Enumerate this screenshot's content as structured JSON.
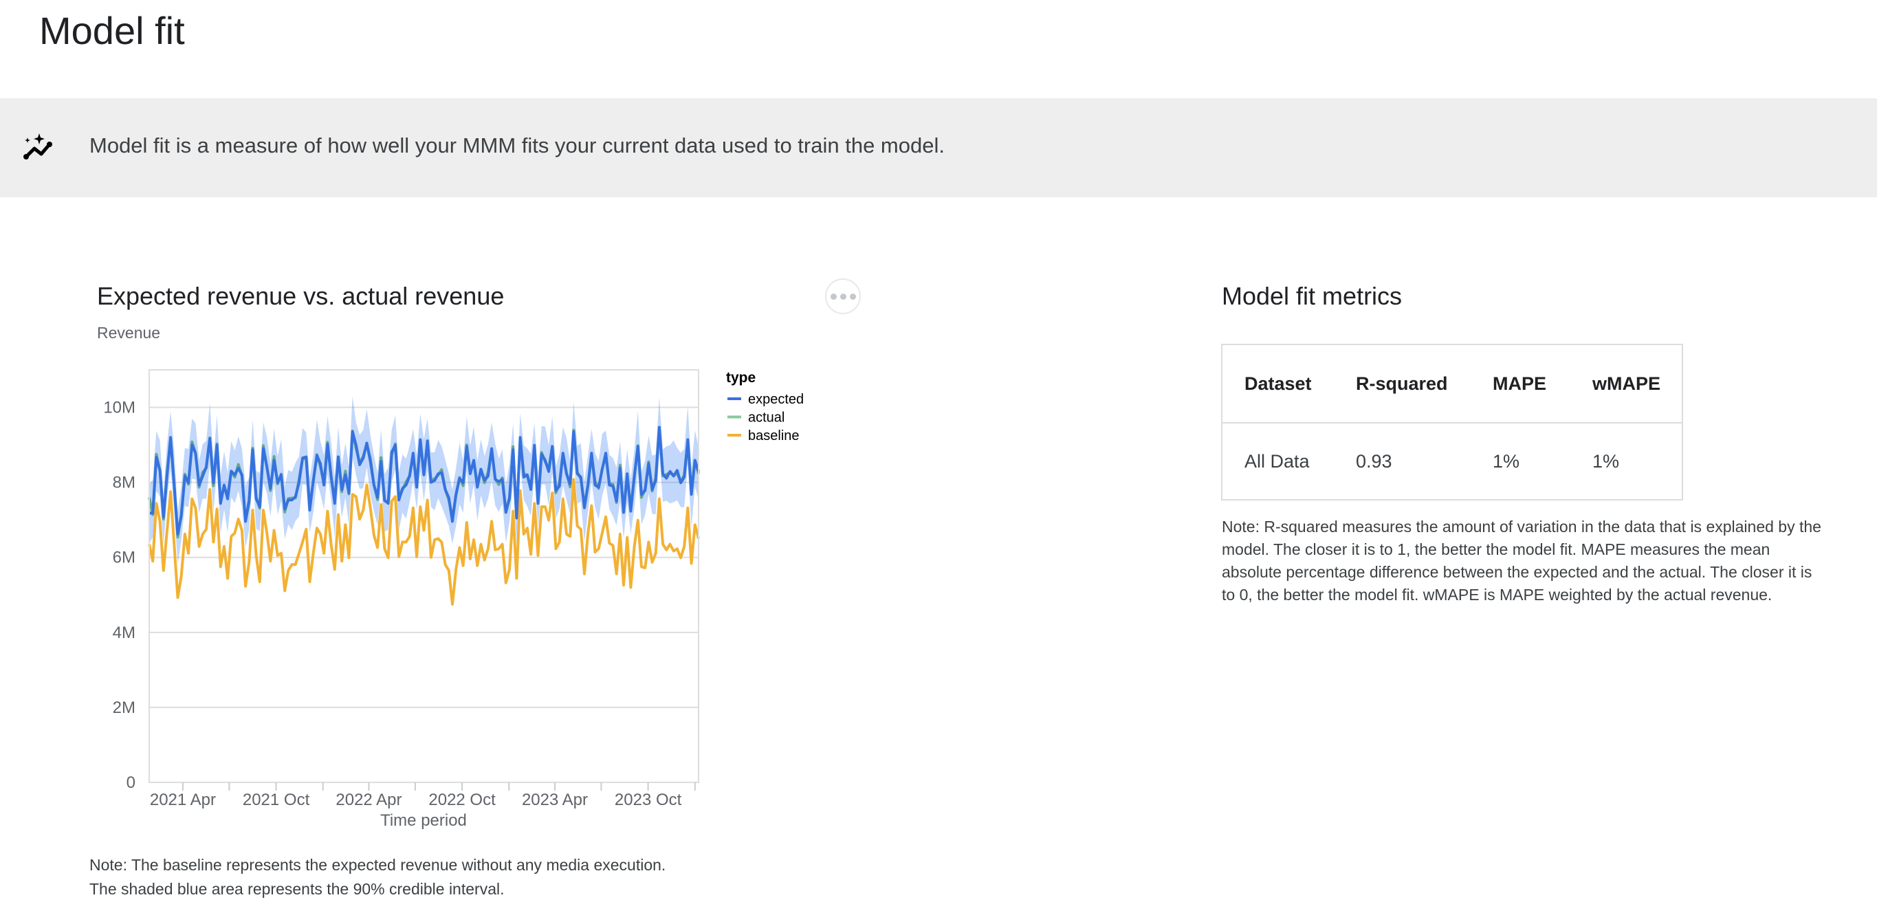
{
  "page": {
    "title": "Model fit"
  },
  "banner": {
    "icon": "insights-sparkle-icon",
    "text": "Model fit is a measure of how well your MMM fits your current data used to train the model."
  },
  "chart_card": {
    "title": "Expected revenue vs. actual revenue",
    "more_icon": "more-horizontal-icon",
    "note_line1": "Note: The baseline represents the expected revenue without any media execution.",
    "note_line2": "The shaded blue area represents the 90% credible interval."
  },
  "chart_data": {
    "type": "line",
    "title": "",
    "ylabel": "Revenue",
    "xlabel": "Time period",
    "ylim": [
      0,
      11000000
    ],
    "y_ticks": [
      0,
      2000000,
      4000000,
      6000000,
      8000000,
      10000000
    ],
    "y_tick_labels": [
      "0",
      "2M",
      "4M",
      "6M",
      "8M",
      "10M"
    ],
    "x_ticks": [
      "2021-04-01",
      "2021-07-01",
      "2021-10-01",
      "2022-01-01",
      "2022-04-01",
      "2022-07-01",
      "2022-10-01",
      "2023-01-01",
      "2023-04-01",
      "2023-07-01",
      "2023-10-01",
      "2024-01-01"
    ],
    "x_tick_labels": [
      "2021 Apr",
      "",
      "2021 Oct",
      "",
      "2022 Apr",
      "",
      "2022 Oct",
      "",
      "2023 Apr",
      "",
      "2023 Oct",
      ""
    ],
    "grid": true,
    "legend": {
      "title": "type",
      "position": "right"
    },
    "units": "M",
    "x": [
      "2021-01-25",
      "2021-02-01",
      "2021-02-08",
      "2021-02-15",
      "2021-02-22",
      "2021-03-01",
      "2021-03-08",
      "2021-03-15",
      "2021-03-22",
      "2021-03-29",
      "2021-04-05",
      "2021-04-12",
      "2021-04-19",
      "2021-04-26",
      "2021-05-03",
      "2021-05-10",
      "2021-05-17",
      "2021-05-24",
      "2021-05-31",
      "2021-06-07",
      "2021-06-14",
      "2021-06-21",
      "2021-06-28",
      "2021-07-05",
      "2021-07-12",
      "2021-07-19",
      "2021-07-26",
      "2021-08-02",
      "2021-08-09",
      "2021-08-16",
      "2021-08-23",
      "2021-08-30",
      "2021-09-06",
      "2021-09-13",
      "2021-09-20",
      "2021-09-27",
      "2021-10-04",
      "2021-10-11",
      "2021-10-18",
      "2021-10-25",
      "2021-11-01",
      "2021-11-08",
      "2021-11-15",
      "2021-11-22",
      "2021-11-29",
      "2021-12-06",
      "2021-12-13",
      "2021-12-20",
      "2021-12-27",
      "2022-01-03",
      "2022-01-10",
      "2022-01-17",
      "2022-01-24",
      "2022-01-31",
      "2022-02-07",
      "2022-02-14",
      "2022-02-21",
      "2022-02-28",
      "2022-03-07",
      "2022-03-14",
      "2022-03-21",
      "2022-03-28",
      "2022-04-04",
      "2022-04-11",
      "2022-04-18",
      "2022-04-25",
      "2022-05-02",
      "2022-05-09",
      "2022-05-16",
      "2022-05-23",
      "2022-05-30",
      "2022-06-06",
      "2022-06-13",
      "2022-06-20",
      "2022-06-27",
      "2022-07-04",
      "2022-07-11",
      "2022-07-18",
      "2022-07-25",
      "2022-08-01",
      "2022-08-08",
      "2022-08-15",
      "2022-08-22",
      "2022-08-29",
      "2022-09-05",
      "2022-09-12",
      "2022-09-19",
      "2022-09-26",
      "2022-10-03",
      "2022-10-10",
      "2022-10-17",
      "2022-10-24",
      "2022-10-31",
      "2022-11-07",
      "2022-11-14",
      "2022-11-21",
      "2022-11-28",
      "2022-12-05",
      "2022-12-12",
      "2022-12-19",
      "2022-12-26",
      "2023-01-02",
      "2023-01-09",
      "2023-01-16",
      "2023-01-23",
      "2023-01-30",
      "2023-02-06",
      "2023-02-13",
      "2023-02-20",
      "2023-02-27",
      "2023-03-06",
      "2023-03-13",
      "2023-03-20",
      "2023-03-27",
      "2023-04-03",
      "2023-04-10",
      "2023-04-17",
      "2023-04-24",
      "2023-05-01",
      "2023-05-08",
      "2023-05-15",
      "2023-05-22",
      "2023-05-29",
      "2023-06-05",
      "2023-06-12",
      "2023-06-19",
      "2023-06-26",
      "2023-07-03",
      "2023-07-10",
      "2023-07-17",
      "2023-07-24",
      "2023-07-31",
      "2023-08-07",
      "2023-08-14",
      "2023-08-21",
      "2023-08-28",
      "2023-09-04",
      "2023-09-11",
      "2023-09-18",
      "2023-09-25",
      "2023-10-02",
      "2023-10-09",
      "2023-10-16",
      "2023-10-23",
      "2023-10-30",
      "2023-11-06",
      "2023-11-13",
      "2023-11-20",
      "2023-11-27",
      "2023-12-04",
      "2023-12-11",
      "2023-12-18",
      "2023-12-25",
      "2024-01-01",
      "2024-01-08"
    ],
    "series": [
      {
        "name": "expected",
        "color": "#3572e0",
        "values": [
          7.18,
          7.18,
          8.67,
          8.32,
          7.08,
          8.17,
          9.2,
          7.93,
          6.62,
          7.11,
          8.17,
          7.99,
          9.0,
          8.78,
          7.93,
          8.17,
          8.41,
          9.17,
          7.99,
          8.99,
          7.44,
          7.93,
          7.56,
          8.3,
          8.2,
          8.38,
          8.2,
          6.96,
          7.53,
          8.87,
          7.56,
          7.35,
          8.9,
          8.41,
          7.84,
          8.59,
          7.99,
          8.2,
          7.29,
          7.53,
          7.53,
          7.62,
          7.99,
          8.65,
          8.68,
          7.26,
          8.05,
          8.72,
          8.5,
          7.93,
          9.02,
          8.17,
          7.44,
          8.68,
          7.81,
          8.2,
          7.72,
          9.35,
          8.99,
          8.47,
          8.65,
          9.05,
          8.56,
          7.93,
          7.6,
          8.56,
          7.53,
          7.44,
          8.81,
          8.99,
          7.53,
          7.84,
          7.93,
          8.17,
          8.78,
          7.87,
          9.14,
          8.2,
          9.11,
          8.0,
          8.05,
          8.23,
          8.26,
          7.81,
          7.59,
          6.96,
          7.68,
          8.11,
          7.99,
          8.96,
          8.23,
          8.59,
          7.87,
          8.35,
          8.05,
          8.17,
          8.9,
          8.08,
          8.02,
          8.08,
          7.2,
          7.59,
          8.87,
          7.05,
          9.2,
          8.14,
          8.2,
          7.81,
          8.99,
          7.44,
          8.75,
          8.59,
          8.29,
          8.96,
          7.78,
          7.9,
          8.78,
          8.23,
          7.96,
          9.35,
          8.23,
          8.14,
          7.32,
          7.93,
          8.78,
          7.93,
          7.87,
          8.35,
          8.78,
          7.93,
          7.9,
          7.5,
          8.38,
          7.2,
          8.23,
          7.23,
          8.17,
          8.96,
          7.68,
          7.78,
          8.5,
          7.81,
          8.05,
          9.47,
          8.23,
          8.11,
          8.29,
          8.17,
          8.32,
          7.99,
          8.14,
          9.14,
          7.68,
          8.59,
          8.29
        ]
      },
      {
        "name": "actual",
        "color": "#8bc89c",
        "values": [
          7.6,
          7.14,
          8.75,
          8.32,
          7.02,
          8.27,
          9.17,
          7.95,
          6.54,
          7.15,
          8.22,
          7.95,
          9.08,
          8.78,
          7.87,
          8.27,
          8.38,
          9.19,
          7.91,
          9.03,
          7.49,
          7.89,
          7.64,
          8.3,
          8.14,
          8.48,
          8.17,
          6.98,
          7.45,
          8.91,
          7.61,
          7.31,
          8.98,
          8.41,
          7.78,
          8.69,
          7.96,
          8.22,
          7.21,
          7.57,
          7.58,
          7.58,
          8.07,
          8.65,
          8.62,
          7.36,
          8.02,
          8.74,
          8.42,
          7.97,
          9.07,
          8.13,
          7.52,
          8.68,
          7.75,
          8.3,
          7.69,
          9.37,
          8.91,
          8.51,
          8.7,
          9.01,
          8.64,
          7.93,
          7.54,
          8.66,
          7.5,
          7.46,
          8.73,
          9.03,
          7.58,
          7.8,
          8.01,
          8.17,
          8.72,
          7.97,
          9.11,
          8.22,
          9.03,
          8.04,
          8.1,
          8.19,
          8.34,
          7.81,
          7.53,
          7.06,
          7.65,
          8.13,
          7.91,
          9.0,
          8.28,
          8.55,
          7.95,
          8.35,
          7.99,
          8.27,
          8.87,
          8.1,
          7.94,
          8.12,
          7.25,
          7.55,
          8.95,
          7.05,
          9.14,
          8.24,
          8.17,
          7.83,
          8.91,
          7.48,
          8.8,
          8.55,
          8.37,
          8.96,
          7.72,
          8.0,
          8.75,
          8.25,
          7.88,
          9.39,
          8.28,
          8.1,
          7.4,
          7.93,
          8.72,
          8.03,
          7.84,
          8.37,
          8.7,
          7.97,
          7.95,
          7.46,
          8.46,
          7.2,
          8.17,
          7.33,
          8.14,
          8.98,
          7.6,
          7.82,
          8.55,
          7.77,
          8.13,
          9.47,
          8.17,
          8.21,
          8.26,
          8.19,
          8.24,
          8.03,
          8.19,
          9.1,
          7.76,
          8.59,
          8.23
        ]
      },
      {
        "name": "baseline",
        "color": "#f2b134",
        "values": [
          6.35,
          5.9,
          7.44,
          6.96,
          5.65,
          6.7,
          7.75,
          6.35,
          4.93,
          5.5,
          6.62,
          6.11,
          7.56,
          7.32,
          6.29,
          6.62,
          6.75,
          7.81,
          6.41,
          7.29,
          5.75,
          6.29,
          5.44,
          6.56,
          6.65,
          7.02,
          6.72,
          5.23,
          5.87,
          7.26,
          6.05,
          5.35,
          7.26,
          6.65,
          5.9,
          6.72,
          6.05,
          6.11,
          5.11,
          5.65,
          5.81,
          5.81,
          6.11,
          6.41,
          6.75,
          5.35,
          6.11,
          6.78,
          6.62,
          6.11,
          7.23,
          6.35,
          5.68,
          7.14,
          5.9,
          6.87,
          5.99,
          7.68,
          7.62,
          7.02,
          7.26,
          7.93,
          7.32,
          6.59,
          6.26,
          7.41,
          6.23,
          5.99,
          7.5,
          7.62,
          6.02,
          6.41,
          6.41,
          6.56,
          7.32,
          6.02,
          7.35,
          6.72,
          7.53,
          6.0,
          6.47,
          6.5,
          6.41,
          5.81,
          5.65,
          4.75,
          5.68,
          6.26,
          5.78,
          6.93,
          5.96,
          6.47,
          5.78,
          6.35,
          5.93,
          6.23,
          6.96,
          6.2,
          6.23,
          6.35,
          5.32,
          5.68,
          7.23,
          5.44,
          7.78,
          6.62,
          6.78,
          6.08,
          7.44,
          6.05,
          7.35,
          7.35,
          6.99,
          7.72,
          6.23,
          6.41,
          7.56,
          6.62,
          6.56,
          8.08,
          6.84,
          6.75,
          5.56,
          6.65,
          7.38,
          6.14,
          6.23,
          6.65,
          7.08,
          6.38,
          6.32,
          5.56,
          6.62,
          5.26,
          6.53,
          5.2,
          6.29,
          6.99,
          5.75,
          5.72,
          6.41,
          5.87,
          6.11,
          7.56,
          6.35,
          6.2,
          6.35,
          6.17,
          6.23,
          5.99,
          6.29,
          7.32,
          5.84,
          6.87,
          6.5
        ]
      }
    ],
    "credible_interval": {
      "level": "90%",
      "color": "#4285f4",
      "lower": [
        6.38,
        6.53,
        7.77,
        7.62,
        6.33,
        7.57,
        8.35,
        7.23,
        5.82,
        6.46,
        7.37,
        7.34,
        8.1,
        8.08,
        7.18,
        7.57,
        7.56,
        8.47,
        7.19,
        8.34,
        6.64,
        7.28,
        6.66,
        7.6,
        7.45,
        7.78,
        7.35,
        6.26,
        6.73,
        8.22,
        6.76,
        6.7,
        8.0,
        7.71,
        7.09,
        7.99,
        7.14,
        7.5,
        6.49,
        6.88,
        6.73,
        6.97,
        7.09,
        7.95,
        7.93,
        6.66,
        7.2,
        8.02,
        7.7,
        7.28,
        8.22,
        7.52,
        6.54,
        7.98,
        7.06,
        7.6,
        6.87,
        8.65,
        8.19,
        7.82,
        7.85,
        8.4,
        7.66,
        7.23,
        6.85,
        7.96,
        6.68,
        6.74,
        8.01,
        8.34,
        6.73,
        7.19,
        7.03,
        7.47,
        8.03,
        7.27,
        8.29,
        7.5,
        8.31,
        7.35,
        7.25,
        7.58,
        7.36,
        7.11,
        6.84,
        6.36,
        6.83,
        7.41,
        7.19,
        8.31,
        7.43,
        7.94,
        6.97,
        7.65,
        7.3,
        7.57,
        8.05,
        7.38,
        7.22,
        7.43,
        6.4,
        6.94,
        7.97,
        6.35,
        8.45,
        7.54,
        7.35,
        7.11,
        8.19,
        6.79,
        7.95,
        7.94,
        7.39,
        8.26,
        7.03,
        7.3,
        7.93,
        7.53,
        7.16,
        8.7,
        7.43,
        7.49,
        6.42,
        7.23,
        8.03,
        7.33,
        7.02,
        7.65,
        7.98,
        7.28,
        7.1,
        6.85,
        7.48,
        6.5,
        7.48,
        6.63,
        7.32,
        8.26,
        6.88,
        7.13,
        7.7,
        7.16,
        7.15,
        8.77,
        7.48,
        7.51,
        7.44,
        7.47,
        7.52,
        7.34,
        7.34,
        8.49,
        6.78,
        7.89,
        7.54
      ],
      "upper": [
        7.93,
        8.08,
        9.37,
        9.12,
        7.73,
        9.02,
        9.9,
        8.88,
        7.22,
        7.91,
        8.92,
        8.89,
        9.7,
        9.58,
        8.58,
        9.02,
        9.11,
        10.12,
        8.59,
        9.79,
        8.19,
        8.83,
        8.26,
        9.1,
        8.85,
        9.23,
        8.9,
        7.91,
        8.13,
        9.67,
        8.31,
        8.25,
        9.6,
        9.21,
        8.49,
        9.44,
        8.69,
        9.15,
        7.89,
        8.33,
        8.28,
        8.52,
        8.69,
        9.45,
        9.33,
        8.11,
        8.75,
        9.67,
        9.1,
        8.73,
        9.77,
        9.07,
        8.14,
        9.48,
        8.46,
        9.05,
        8.42,
        10.3,
        9.59,
        9.27,
        9.4,
        9.95,
        9.26,
        8.73,
        8.25,
        9.41,
        8.23,
        8.39,
        9.41,
        9.79,
        8.28,
        8.74,
        8.63,
        8.97,
        9.43,
        8.72,
        9.84,
        9.15,
        9.71,
        8.8,
        8.8,
        9.13,
        8.96,
        8.61,
        8.24,
        7.81,
        8.38,
        9.06,
        8.59,
        9.76,
        8.98,
        9.49,
        8.57,
        9.15,
        8.7,
        9.02,
        9.6,
        9.03,
        8.62,
        8.88,
        7.95,
        8.49,
        9.57,
        7.85,
        9.85,
        8.99,
        8.9,
        8.76,
        9.59,
        8.24,
        9.5,
        9.49,
        8.99,
        9.76,
        8.43,
        8.75,
        9.48,
        9.18,
        8.56,
        10.15,
        8.98,
        9.04,
        8.02,
        8.73,
        9.43,
        8.78,
        8.57,
        9.3,
        9.38,
        8.73,
        8.65,
        8.4,
        9.08,
        8.0,
        8.88,
        8.08,
        8.87,
        9.91,
        8.28,
        8.58,
        9.25,
        8.71,
        8.75,
        10.27,
        8.88,
        8.96,
        8.99,
        9.12,
        8.92,
        8.79,
        8.89,
        10.04,
        8.38,
        9.39,
        8.94
      ]
    }
  },
  "metrics": {
    "title": "Model fit metrics",
    "columns": [
      "Dataset",
      "R-squared",
      "MAPE",
      "wMAPE"
    ],
    "rows": [
      [
        "All Data",
        "0.93",
        "1%",
        "1%"
      ]
    ],
    "note": "Note: R-squared measures the amount of variation in the data that is explained by the model. The closer it is to 1, the better the model fit. MAPE measures the mean absolute percentage difference between the expected and the actual. The closer it is to 0, the better the model fit. wMAPE is MAPE weighted by the actual revenue."
  }
}
